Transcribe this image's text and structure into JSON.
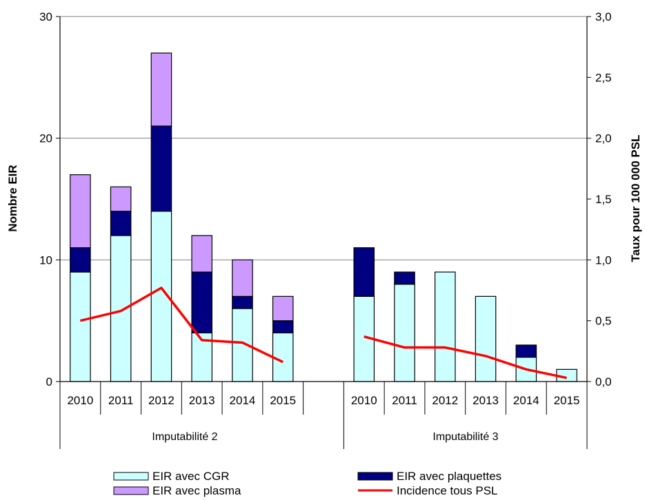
{
  "chart_data": {
    "type": "bar",
    "stacked": true,
    "y_left": {
      "label": "Nombre EIR",
      "range": [
        0,
        30
      ],
      "ticks": [
        "0",
        "10",
        "20",
        "30"
      ]
    },
    "y_right": {
      "label": "Taux pour 100 000 PSL",
      "range": [
        0,
        3
      ],
      "ticks": [
        "0,0",
        "0,5",
        "1,0",
        "1,5",
        "2,0",
        "2,5",
        "3,0"
      ]
    },
    "grid": true,
    "groups": [
      {
        "label": "Imputabilité 2",
        "categories": [
          "2010",
          "2011",
          "2012",
          "2013",
          "2014",
          "2015"
        ]
      },
      {
        "label": "Imputabilité 3",
        "categories": [
          "2010",
          "2011",
          "2012",
          "2013",
          "2014",
          "2015"
        ]
      }
    ],
    "series": [
      {
        "name": "EIR avec CGR",
        "color": "#ccffff",
        "axis": "left",
        "kind": "bar",
        "values": [
          [
            9,
            12,
            14,
            4,
            6,
            4
          ],
          [
            7,
            8,
            9,
            7,
            2,
            1
          ]
        ]
      },
      {
        "name": "EIR avec plaquettes",
        "color": "#000080",
        "axis": "left",
        "kind": "bar",
        "values": [
          [
            2,
            2,
            7,
            5,
            1,
            1
          ],
          [
            4,
            1,
            0,
            0,
            1,
            0
          ]
        ]
      },
      {
        "name": "EIR avec plasma",
        "color": "#cc99ff",
        "axis": "left",
        "kind": "bar",
        "values": [
          [
            6,
            2,
            6,
            3,
            3,
            2
          ],
          [
            0,
            0,
            0,
            0,
            0,
            0
          ]
        ]
      },
      {
        "name": "Incidence tous PSL",
        "color": "#ff0000",
        "axis": "right",
        "kind": "line",
        "values": [
          [
            0.5,
            0.58,
            0.77,
            0.34,
            0.32,
            0.16
          ],
          [
            0.37,
            0.28,
            0.28,
            0.21,
            0.1,
            0.03
          ]
        ]
      }
    ],
    "legend": {
      "position": "bottom"
    }
  }
}
